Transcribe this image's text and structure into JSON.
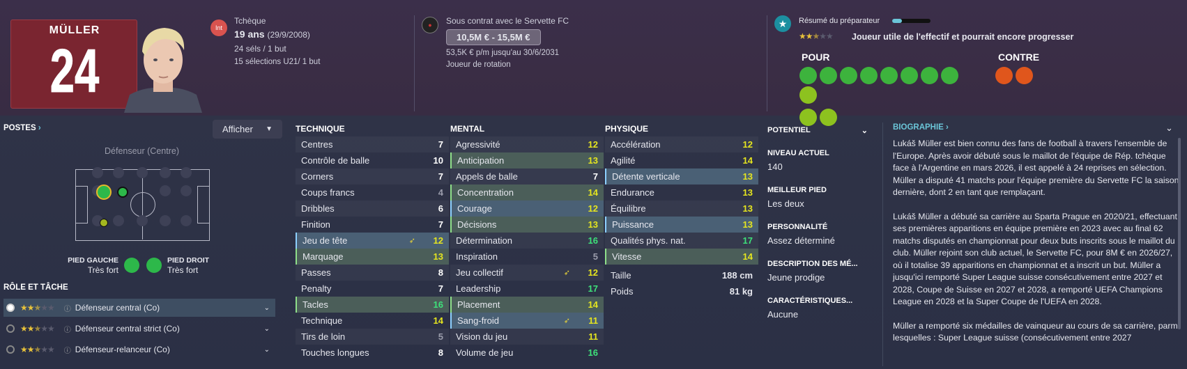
{
  "player": {
    "name": "MÜLLER",
    "number": "24"
  },
  "info": {
    "nat_badge": "Int",
    "nationality": "Tchèque",
    "age": "19 ans",
    "dob": "(29/9/2008)",
    "caps": "24 séls / 1 but",
    "u21": "15 sélections U21/ 1 but"
  },
  "contract": {
    "club": "Sous contrat avec le Servette FC",
    "value": "10,5M € - 15,5M €",
    "wage": "53,5K € p/m jusqu'au 30/6/2031",
    "status": "Joueur de rotation"
  },
  "coach": {
    "title": "Résumé du préparateur",
    "rating": 2.5,
    "summary": "Joueur utile de l'effectif et pourrait encore progresser",
    "pour": "POUR",
    "contre": "CONTRE"
  },
  "positions": {
    "title": "POSTES",
    "show_btn": "Afficher",
    "position": "Défenseur (Centre)",
    "left_foot_label": "PIED GAUCHE",
    "left_foot": "Très fort",
    "right_foot_label": "PIED DROIT",
    "right_foot": "Très fort"
  },
  "roles": {
    "title": "RÔLE ET TÂCHE",
    "items": [
      {
        "name": "Défenseur central (Co)",
        "stars": 2.5
      },
      {
        "name": "Défenseur central strict (Co)",
        "stars": 2.5
      },
      {
        "name": "Défenseur-relanceur (Co)",
        "stars": 2.5
      }
    ]
  },
  "technique": {
    "title": "TECHNIQUE",
    "attrs": [
      [
        "Centres",
        "7"
      ],
      [
        "Contrôle de balle",
        "10"
      ],
      [
        "Corners",
        "7"
      ],
      [
        "Coups francs",
        "4"
      ],
      [
        "Dribbles",
        "6"
      ],
      [
        "Finition",
        "7"
      ],
      [
        "Jeu de tête",
        "12"
      ],
      [
        "Marquage",
        "13"
      ],
      [
        "Passes",
        "8"
      ],
      [
        "Penalty",
        "7"
      ],
      [
        "Tacles",
        "16"
      ],
      [
        "Technique",
        "14"
      ],
      [
        "Tirs de loin",
        "5"
      ],
      [
        "Touches longues",
        "8"
      ]
    ]
  },
  "mental": {
    "title": "MENTAL",
    "attrs": [
      [
        "Agressivité",
        "12"
      ],
      [
        "Anticipation",
        "13"
      ],
      [
        "Appels de balle",
        "7"
      ],
      [
        "Concentration",
        "14"
      ],
      [
        "Courage",
        "12"
      ],
      [
        "Décisions",
        "13"
      ],
      [
        "Détermination",
        "16"
      ],
      [
        "Inspiration",
        "5"
      ],
      [
        "Jeu collectif",
        "12"
      ],
      [
        "Leadership",
        "17"
      ],
      [
        "Placement",
        "14"
      ],
      [
        "Sang-froid",
        "11"
      ],
      [
        "Vision du jeu",
        "11"
      ],
      [
        "Volume de jeu",
        "16"
      ]
    ]
  },
  "physique": {
    "title": "PHYSIQUE",
    "attrs": [
      [
        "Accélération",
        "12"
      ],
      [
        "Agilité",
        "14"
      ],
      [
        "Détente verticale",
        "13"
      ],
      [
        "Endurance",
        "13"
      ],
      [
        "Équilibre",
        "13"
      ],
      [
        "Puissance",
        "13"
      ],
      [
        "Qualités phys. nat.",
        "17"
      ],
      [
        "Vitesse",
        "14"
      ]
    ],
    "height_label": "Taille",
    "height": "188 cm",
    "weight_label": "Poids",
    "weight": "81 kg"
  },
  "side": {
    "potential": "POTENTIEL",
    "level_label": "NIVEAU ACTUEL",
    "level": "140",
    "foot_label": "MEILLEUR PIED",
    "foot": "Les deux",
    "pers_label": "PERSONNALITÉ",
    "pers": "Assez déterminé",
    "media_label": "DESCRIPTION DES MÉ...",
    "media": "Jeune prodige",
    "traits_label": "CARACTÉRISTIQUES...",
    "traits": "Aucune"
  },
  "bio": {
    "title": "BIOGRAPHIE",
    "p1": "Lukáš Müller est bien connu des fans de football à travers l'ensemble de l'Europe. Après avoir débuté sous le maillot de l'équipe de Rép. tchèque face à l'Argentine en mars 2026, il est appelé à 24 reprises en sélection. Müller a disputé 41 matchs pour l'équipe première du Servette FC la saison dernière, dont 2 en tant que remplaçant.",
    "p2": "Lukáš Müller a débuté sa carrière au Sparta Prague en 2020/21, effectuant ses premières apparitions en équipe première en 2023 avec au final 62 matchs disputés en championnat pour deux buts inscrits sous le maillot du club. Müller rejoint son club actuel, le Servette FC, pour 8M € en 2026/27, où il totalise 39 apparitions en championnat et a inscrit un but. Müller a jusqu'ici remporté Super League suisse consécutivement entre 2027 et 2028, Coupe de Suisse en 2027 et 2028, a remporté UEFA Champions League en 2028 et la Super Coupe de l'UEFA en 2028.",
    "p3": "Müller a remporté six médailles de vainqueur au cours de sa carrière, parmi lesquelles : Super League suisse (consécutivement entre 2027"
  },
  "colors": {
    "white": "#ffffff",
    "yellow": "#e5e51f",
    "green": "#3ee07a",
    "grey": "#9a9cab"
  }
}
